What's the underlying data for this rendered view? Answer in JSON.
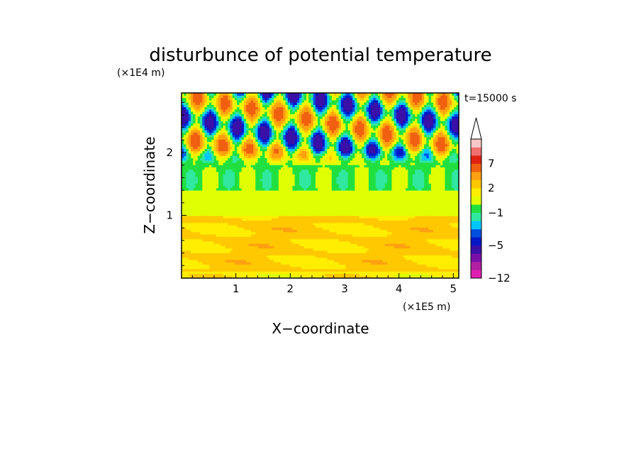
{
  "chart_data": {
    "type": "heatmap",
    "title": "disturbunce of potential temperature",
    "xlabel": "X−coordinate",
    "ylabel": "Z−coordinate",
    "x_unit": "(×1E5 m)",
    "y_unit": "(×1E4 m)",
    "time_label": "t=15000 s",
    "xlim": [
      0,
      5.1
    ],
    "ylim": [
      0,
      2.95
    ],
    "x_ticks": [
      1,
      2,
      3,
      4,
      5
    ],
    "x_tick_labels": [
      "1",
      "2",
      "3",
      "4",
      "5"
    ],
    "y_ticks": [
      1,
      2
    ],
    "y_tick_labels": [
      "1",
      "2"
    ],
    "colorbar": {
      "levels": [
        -12,
        -11,
        -9,
        -7,
        -5,
        -4,
        -3,
        -2,
        -1,
        0,
        1,
        2,
        3,
        5,
        7,
        9,
        11
      ],
      "tick_values": [
        -12,
        -5,
        -1,
        2,
        7
      ],
      "tick_labels": [
        "−12",
        "−5",
        "−1",
        "2",
        "7"
      ],
      "colors": [
        "#e020b0",
        "#b020a0",
        "#7a10a8",
        "#3a10a8",
        "#0018c8",
        "#0050e0",
        "#00c8ff",
        "#30e8a0",
        "#20e040",
        "#e0ff00",
        "#ffee00",
        "#ffc800",
        "#ffa010",
        "#f06010",
        "#e02010",
        "#f07070",
        "#f8c8c8"
      ],
      "extend_max": true
    },
    "regions": [
      {
        "z_range": [
          0,
          0.1
        ],
        "value": 1.5
      },
      {
        "z_range": [
          0.1,
          1.0
        ],
        "value": 2.2
      },
      {
        "z_range": [
          1.0,
          1.4
        ],
        "value": 0.6
      },
      {
        "z_range": [
          1.4,
          1.8
        ],
        "value": -0.3
      },
      {
        "z_range": [
          1.8,
          2.95
        ],
        "value": 0,
        "note": "alternating wave bands, amplitude 7"
      }
    ]
  }
}
